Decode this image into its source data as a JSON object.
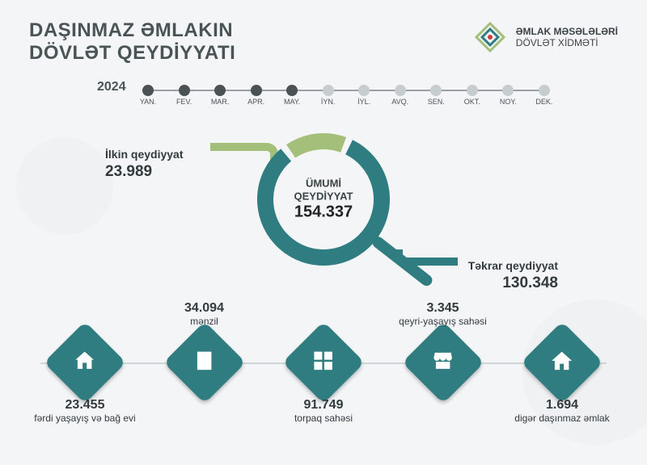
{
  "colors": {
    "background": "#f3f5f6",
    "title": "#4a5456",
    "org_text": "#3b4344",
    "accent_green": "#a3bf7a",
    "accent_teal": "#2f7d80",
    "timeline_track": "#9aa0a2",
    "timeline_dot_active": "#4a5254",
    "timeline_dot_inactive": "#c7cdcf",
    "cat_line": "#cfd5d6",
    "icon_fg": "#ffffff",
    "text_dark": "#323a3c"
  },
  "typography": {
    "title_fontsize": 24,
    "org_fontsize": 12,
    "timeline_year_fontsize": 16,
    "lead_label_fontsize": 14,
    "lead_value_fontsize": 19
  },
  "header": {
    "title_line1": "DAŞINMAZ ƏMLAKIN",
    "title_line2": "DÖVLƏT QEYDİYYATI",
    "org_line1": "ƏMLAK MƏSƏLƏLƏRİ",
    "org_line2": "DÖVLƏT XİDMƏTİ"
  },
  "timeline": {
    "year": "2024",
    "months": [
      {
        "label": "YAN.",
        "active": true
      },
      {
        "label": "FEV.",
        "active": true
      },
      {
        "label": "MAR.",
        "active": true
      },
      {
        "label": "APR.",
        "active": true
      },
      {
        "label": "MAY.",
        "active": true
      },
      {
        "label": "İYN.",
        "active": false
      },
      {
        "label": "İYL.",
        "active": false
      },
      {
        "label": "AVQ.",
        "active": false
      },
      {
        "label": "SEN.",
        "active": false
      },
      {
        "label": "OKT.",
        "active": false
      },
      {
        "label": "NOY.",
        "active": false
      },
      {
        "label": "DEK.",
        "active": false
      }
    ]
  },
  "donut": {
    "type": "donut",
    "center_label": "ÜMUMİ QEYDİYYAT",
    "center_value": "154.337",
    "ring_thickness": 20,
    "gap_deg": 6,
    "segments": [
      {
        "key": "initial",
        "label": "İlkin qeydiyyat",
        "value_display": "23.989",
        "value_num": 23989,
        "color": "#a3bf7a"
      },
      {
        "key": "repeat",
        "label": "Təkrar qeydiyyat",
        "value_display": "130.348",
        "value_num": 130348,
        "color": "#2f7d80"
      }
    ],
    "handle_color": "#2f7d80"
  },
  "categories": {
    "diamond_color": "#2f7d80",
    "items": [
      {
        "key": "house",
        "value": "23.455",
        "label": "fərdi yaşayış və bağ evi",
        "label_pos": "bottom",
        "icon": "house"
      },
      {
        "key": "apart",
        "value": "34.094",
        "label": "mənzil",
        "label_pos": "top",
        "icon": "building"
      },
      {
        "key": "land",
        "value": "91.749",
        "label": "torpaq sahəsi",
        "label_pos": "bottom",
        "icon": "land"
      },
      {
        "key": "nonres",
        "value": "3.345",
        "label": "qeyri-yaşayış sahəsi",
        "label_pos": "top",
        "icon": "shop"
      },
      {
        "key": "other",
        "value": "1.694",
        "label": "digər daşınmaz əmlak",
        "label_pos": "bottom",
        "icon": "home"
      }
    ]
  }
}
